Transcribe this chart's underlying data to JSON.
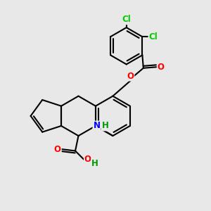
{
  "background_color": "#e8e8e8",
  "bond_color": "#000000",
  "bond_width": 1.5,
  "atom_colors": {
    "Cl": "#00cc00",
    "O": "#ff0000",
    "N": "#0000ff",
    "H": "#009900",
    "C": "#000000"
  },
  "font_size": 8.5,
  "figsize": [
    3.0,
    3.0
  ],
  "dpi": 100
}
